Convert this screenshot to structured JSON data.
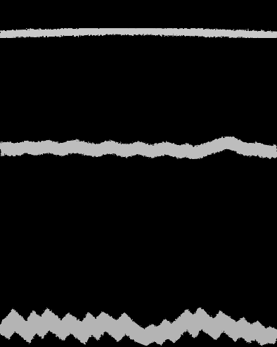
{
  "chart_data": {
    "type": "line",
    "tick_labels": false,
    "grid": false,
    "xlim": [
      0,
      40
    ],
    "ylim": [
      0,
      100
    ],
    "x": [
      0,
      1,
      2,
      3,
      4,
      5,
      6,
      7,
      8,
      9,
      10,
      11,
      12,
      13,
      14,
      15,
      16,
      17,
      18,
      19,
      20,
      21,
      22,
      23,
      24,
      25,
      26,
      27,
      28,
      29,
      30,
      31,
      32,
      33,
      34,
      35,
      36,
      37,
      38,
      39,
      40
    ],
    "series": [
      {
        "color": "#c8c8c8",
        "values": [
          90.0,
          90.1,
          90.2,
          90.3,
          90.4,
          90.4,
          90.5,
          90.6,
          90.5,
          90.7,
          90.8,
          90.7,
          90.9,
          91.0,
          90.9,
          91.0,
          91.1,
          91.0,
          91.0,
          90.9,
          91.0,
          91.1,
          91.0,
          90.9,
          90.8,
          90.9,
          90.7,
          90.8,
          90.6,
          90.6,
          90.5,
          90.4,
          90.5,
          90.3,
          90.2,
          90.3,
          90.1,
          90.0,
          90.1,
          89.9,
          89.8
        ]
      },
      {
        "color": "#bdbdbd",
        "values": [
          57.0,
          57.3,
          56.8,
          57.2,
          57.6,
          57.1,
          57.4,
          57.8,
          57.2,
          56.9,
          57.5,
          57.9,
          57.3,
          57.0,
          56.6,
          57.2,
          57.7,
          57.1,
          56.5,
          56.9,
          57.4,
          56.8,
          56.3,
          56.9,
          57.3,
          56.7,
          56.2,
          56.8,
          55.9,
          56.4,
          57.1,
          57.8,
          58.4,
          59.0,
          58.2,
          57.3,
          56.8,
          57.1,
          56.5,
          56.2,
          56.6
        ]
      },
      {
        "color": "#b4b4b4",
        "values": [
          6.5,
          5.2,
          7.8,
          6.0,
          4.3,
          7.2,
          5.5,
          8.1,
          6.3,
          4.8,
          7.0,
          5.6,
          3.9,
          6.8,
          5.1,
          7.4,
          6.2,
          4.5,
          6.9,
          5.0,
          3.6,
          2.8,
          4.1,
          3.2,
          5.3,
          4.0,
          6.1,
          7.9,
          5.8,
          8.4,
          6.6,
          5.0,
          7.5,
          6.2,
          4.4,
          5.7,
          3.8,
          4.9,
          2.9,
          3.5,
          2.6
        ]
      }
    ]
  }
}
